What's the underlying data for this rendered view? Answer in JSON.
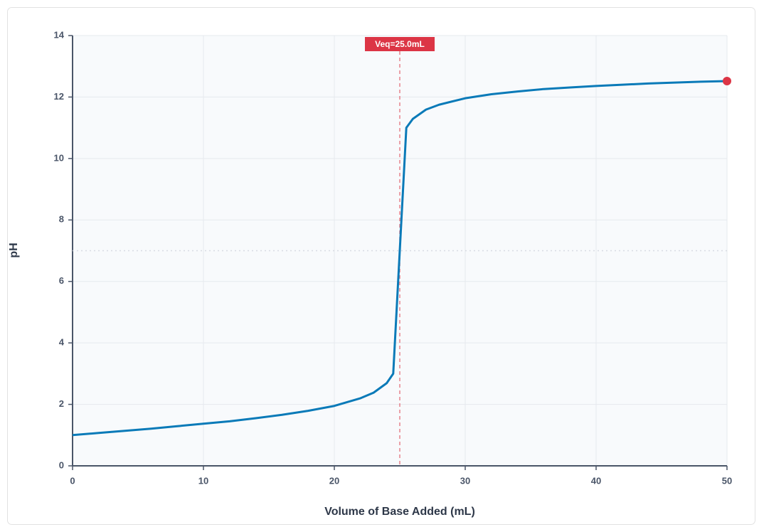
{
  "chart_data": {
    "type": "line",
    "x_label": "Volume of Base Added (mL)",
    "y_label": "pH",
    "x": [
      0,
      2,
      4,
      6,
      8,
      10,
      12,
      14,
      16,
      18,
      20,
      22,
      23,
      24,
      24.5,
      25,
      25.5,
      26,
      27,
      28,
      30,
      32,
      34,
      36,
      38,
      40,
      42,
      44,
      46,
      48,
      50
    ],
    "series": [
      {
        "color": "#0a7ab8",
        "values": [
          1.0,
          1.07,
          1.14,
          1.21,
          1.29,
          1.37,
          1.45,
          1.55,
          1.66,
          1.79,
          1.95,
          2.2,
          2.38,
          2.69,
          3.0,
          7.0,
          11.0,
          11.29,
          11.59,
          11.75,
          11.96,
          12.09,
          12.18,
          12.26,
          12.31,
          12.36,
          12.4,
          12.44,
          12.47,
          12.5,
          12.52
        ]
      }
    ],
    "current_point": {
      "x": 50,
      "y": 12.52,
      "color": "#dc3545"
    },
    "vlines": [
      {
        "x": 25,
        "label": "Veq=25.0mL",
        "color": "#dc3545"
      }
    ],
    "hlines": [
      {
        "y": 7
      }
    ],
    "xlim": [
      0,
      50
    ],
    "xticks": [
      0,
      10,
      20,
      30,
      40,
      50
    ],
    "ylim": [
      0,
      14
    ],
    "yticks": [
      0,
      2,
      4,
      6,
      8,
      10,
      12,
      14
    ],
    "grid": true
  }
}
